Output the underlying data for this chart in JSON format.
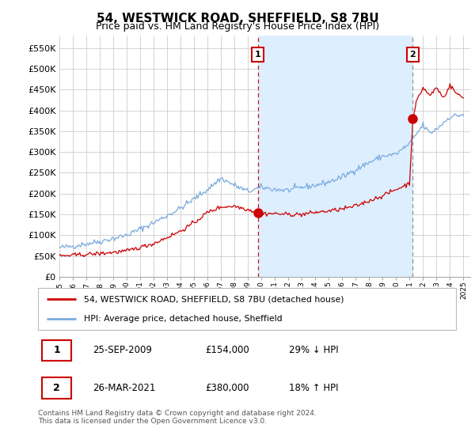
{
  "title": "54, WESTWICK ROAD, SHEFFIELD, S8 7BU",
  "subtitle": "Price paid vs. HM Land Registry's House Price Index (HPI)",
  "ytick_values": [
    0,
    50000,
    100000,
    150000,
    200000,
    250000,
    300000,
    350000,
    400000,
    450000,
    500000,
    550000
  ],
  "ylim": [
    0,
    580000
  ],
  "xlim_start": 1995.0,
  "xlim_end": 2025.5,
  "xtick_years": [
    1995,
    1996,
    1997,
    1998,
    1999,
    2000,
    2001,
    2002,
    2003,
    2004,
    2005,
    2006,
    2007,
    2008,
    2009,
    2010,
    2011,
    2012,
    2013,
    2014,
    2015,
    2016,
    2017,
    2018,
    2019,
    2020,
    2021,
    2022,
    2023,
    2024,
    2025
  ],
  "red_line_color": "#cc0000",
  "blue_line_color": "#7aaadd",
  "shade_color": "#ddeeff",
  "grid_color": "#cccccc",
  "bg_color": "#ffffff",
  "sale1_x": 2009.73,
  "sale1_y": 154000,
  "sale2_x": 2021.23,
  "sale2_y": 380000,
  "vline1_x": 2009.73,
  "vline2_x": 2021.23,
  "legend_red_label": "54, WESTWICK ROAD, SHEFFIELD, S8 7BU (detached house)",
  "legend_blue_label": "HPI: Average price, detached house, Sheffield",
  "table_rows": [
    {
      "num": "1",
      "date": "25-SEP-2009",
      "price": "£154,000",
      "hpi": "29% ↓ HPI"
    },
    {
      "num": "2",
      "date": "26-MAR-2021",
      "price": "£380,000",
      "hpi": "18% ↑ HPI"
    }
  ],
  "footer": "Contains HM Land Registry data © Crown copyright and database right 2024.\nThis data is licensed under the Open Government Licence v3.0.",
  "title_fontsize": 11,
  "subtitle_fontsize": 9
}
